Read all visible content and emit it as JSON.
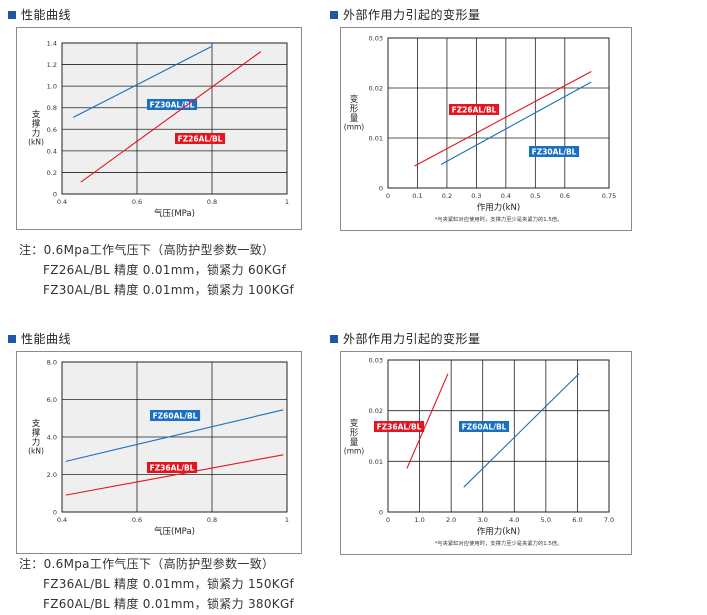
{
  "sections": {
    "top_left_title": "性能曲线",
    "top_right_title": "外部作用力引起的变形量",
    "bottom_left_title": "性能曲线",
    "bottom_right_title": "外部作用力引起的变形量"
  },
  "notes": {
    "top": [
      "注：0.6Mpa工作气压下（高防护型参数一致）",
      "FZ26AL/BL 精度 0.01mm，锁紧力 60KGf",
      "FZ30AL/BL 精度 0.01mm，锁紧力 100KGf"
    ],
    "bottom": [
      "注：0.6Mpa工作气压下（高防护型参数一致）",
      "FZ36AL/BL 精度 0.01mm，锁紧力 150KGf",
      "FZ60AL/BL 精度 0.01mm，锁紧力 380KGf"
    ]
  },
  "colors": {
    "accent": "#1f57a8",
    "red": "#e3151f",
    "blue": "#1a6fc0",
    "grid_fill": "#efefef"
  },
  "chart_data": [
    {
      "id": "perf-top",
      "type": "line",
      "xlabel": "气压(MPa)",
      "ylabel": "支撑力(kN)",
      "xlim": [
        0.4,
        1
      ],
      "ylim": [
        0,
        1.4
      ],
      "x_ticks": [
        "0.4",
        "0.6",
        "0.8",
        "1"
      ],
      "y_ticks": [
        "0",
        "0.2",
        "0.4",
        "0.6",
        "0.8",
        "1.0",
        "1.2",
        "1.4"
      ],
      "shaded": true,
      "series": [
        {
          "name": "FZ30AL/BL",
          "color": "blue",
          "x": [
            0.43,
            0.8
          ],
          "y": [
            0.71,
            1.37
          ]
        },
        {
          "name": "FZ26AL/BL",
          "color": "red",
          "x": [
            0.45,
            0.93
          ],
          "y": [
            0.11,
            1.32
          ]
        }
      ]
    },
    {
      "id": "deform-top",
      "type": "line",
      "xlabel": "作用力(kN)",
      "ylabel": "变形量(mm)",
      "xlim": [
        0,
        0.75
      ],
      "ylim": [
        0,
        0.03
      ],
      "x_ticks": [
        "0",
        "0.1",
        "0.2",
        "0.3",
        "0.4",
        "0.5",
        "0.6",
        "0.75"
      ],
      "y_ticks": [
        "0",
        "0.01",
        "0.02",
        "0.03"
      ],
      "shaded": false,
      "footnote": "*与夹紧缸对应使用时，支撑力至少是夹紧力的1.5倍。",
      "series": [
        {
          "name": "FZ26AL/BL",
          "color": "red",
          "x": [
            0.09,
            0.69
          ],
          "y": [
            0.0044,
            0.0233
          ]
        },
        {
          "name": "FZ30AL/BL",
          "color": "blue",
          "x": [
            0.18,
            0.69
          ],
          "y": [
            0.0047,
            0.0212
          ]
        }
      ]
    },
    {
      "id": "perf-bottom",
      "type": "line",
      "xlabel": "气压(MPa)",
      "ylabel": "支撑力(kN)",
      "xlim": [
        0.4,
        1
      ],
      "ylim": [
        0,
        8
      ],
      "x_ticks": [
        "0.4",
        "0.6",
        "0.8",
        "1"
      ],
      "y_ticks": [
        "0",
        "2.0",
        "4.0",
        "6.0",
        "8.0"
      ],
      "shaded": true,
      "series": [
        {
          "name": "FZ60AL/BL",
          "color": "blue",
          "x": [
            0.41,
            0.99
          ],
          "y": [
            2.7,
            5.45
          ]
        },
        {
          "name": "FZ36AL/BL",
          "color": "red",
          "x": [
            0.41,
            0.99
          ],
          "y": [
            0.9,
            3.05
          ]
        }
      ]
    },
    {
      "id": "deform-bottom",
      "type": "line",
      "xlabel": "作用力(kN)",
      "ylabel": "变形量(mm)",
      "xlim": [
        0,
        7
      ],
      "ylim": [
        0,
        0.03
      ],
      "x_ticks": [
        "0",
        "1.0",
        "2.0",
        "3.0",
        "4.0",
        "5.0",
        "6.0",
        "7.0"
      ],
      "y_ticks": [
        "0",
        "0.01",
        "0.02",
        "0.03"
      ],
      "shaded": false,
      "footnote": "*与夹紧缸对应使用时，支撑力至少是夹紧力的1.5倍。",
      "series": [
        {
          "name": "FZ36AL/BL",
          "color": "red",
          "x": [
            0.6,
            1.9
          ],
          "y": [
            0.0086,
            0.0273
          ]
        },
        {
          "name": "FZ60AL/BL",
          "color": "blue",
          "x": [
            2.4,
            6.05
          ],
          "y": [
            0.0049,
            0.0273
          ]
        }
      ]
    }
  ]
}
